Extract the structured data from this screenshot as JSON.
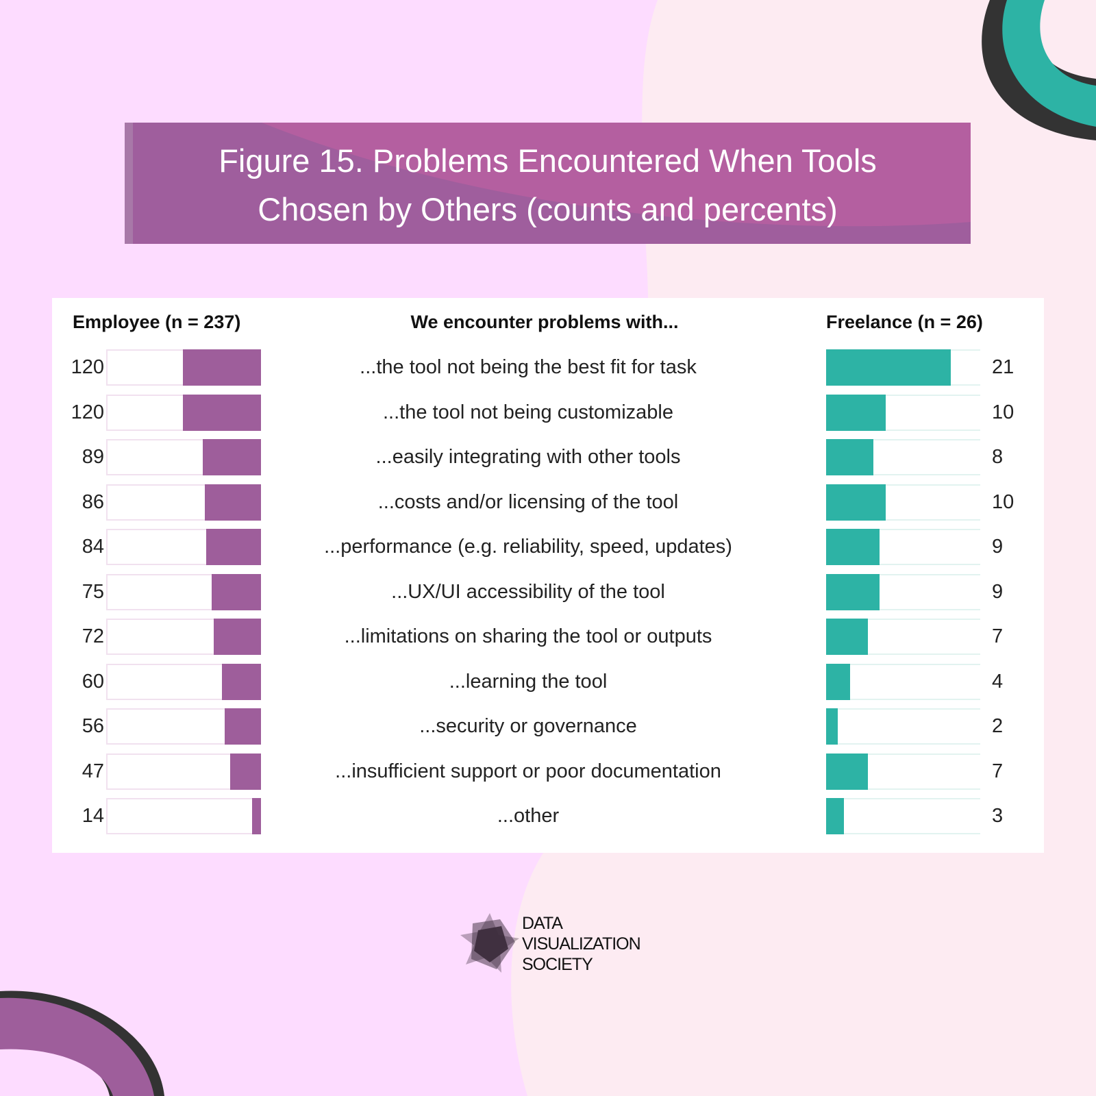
{
  "title": "Figure 15. Problems Encountered When Tools Chosen by Others (counts and percents)",
  "title_lines": [
    "Figure 15. Problems Encountered When Tools",
    "Chosen by Others (counts and percents)"
  ],
  "logo": {
    "lines": [
      "DATA",
      "VISUALIZATION",
      "SOCIETY"
    ]
  },
  "colors": {
    "employee": "#9e5e9b",
    "freelance": "#2db3a5",
    "banner": "#b45fa0"
  },
  "chart_data": {
    "type": "bar",
    "title": "Figure 15. Problems Encountered When Tools Chosen by Others (counts and percents)",
    "center_header": "We encounter problems with...",
    "categories": [
      "...the tool not being the best fit for task",
      "...the tool not being customizable",
      "...easily integrating with other tools",
      "...costs and/or licensing of the tool",
      "...performance (e.g. reliability, speed, updates)",
      "...UX/UI accessibility of the tool",
      "...limitations on sharing the tool or outputs",
      "...learning the tool",
      "...security or governance",
      "...insufficient support or poor documentation",
      "...other"
    ],
    "series": [
      {
        "name": "Employee (n = 237)",
        "n": 237,
        "values": [
          120,
          120,
          89,
          86,
          84,
          75,
          72,
          60,
          56,
          47,
          14
        ]
      },
      {
        "name": "Freelance (n = 26)",
        "n": 26,
        "values": [
          21,
          10,
          8,
          10,
          9,
          9,
          7,
          4,
          2,
          7,
          3
        ]
      }
    ]
  }
}
